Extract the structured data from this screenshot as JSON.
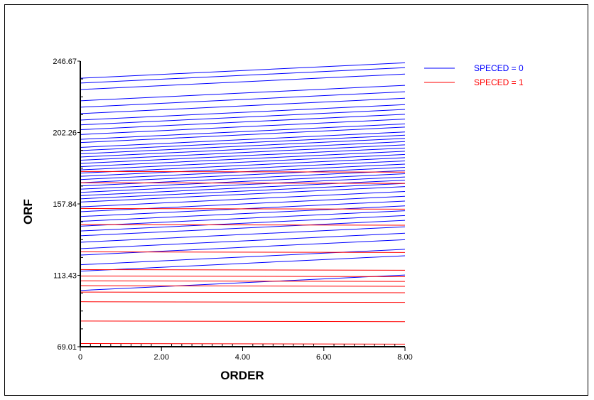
{
  "chart_data": {
    "type": "line",
    "title": "",
    "xlabel": "ORDER",
    "ylabel": "ORF",
    "xlim": [
      0,
      8
    ],
    "ylim": [
      69.01,
      246.67
    ],
    "x_ticks": [
      "0",
      "2.00",
      "4.00",
      "6.00",
      "8.00"
    ],
    "y_ticks": [
      "69.01",
      "113.43",
      "157.84",
      "202.26",
      "246.67"
    ],
    "grid": false,
    "legend_position": "top-right",
    "legend": [
      {
        "label": "SPECED = 0",
        "color": "#0000ff"
      },
      {
        "label": "SPECED = 1",
        "color": "#ff0000"
      }
    ],
    "series": [
      {
        "name": "SPECED = 0",
        "color": "#0000ff",
        "lines": [
          [
            0,
            236
          ],
          [
            0,
            233
          ],
          [
            0,
            229
          ],
          [
            0,
            222
          ],
          [
            0,
            218
          ],
          [
            0,
            214
          ],
          [
            0,
            210
          ],
          [
            0,
            207
          ],
          [
            0,
            204
          ],
          [
            0,
            201
          ],
          [
            0,
            198
          ],
          [
            0,
            196
          ],
          [
            0,
            193
          ],
          [
            0,
            191
          ],
          [
            0,
            189
          ],
          [
            0,
            187
          ],
          [
            0,
            185
          ],
          [
            0,
            183
          ],
          [
            0,
            181
          ],
          [
            0,
            179
          ],
          [
            0,
            177
          ],
          [
            0,
            175
          ],
          [
            0,
            173
          ],
          [
            0,
            171
          ],
          [
            0,
            169
          ],
          [
            0,
            167
          ],
          [
            0,
            165
          ],
          [
            0,
            163
          ],
          [
            0,
            161
          ],
          [
            0,
            159
          ],
          [
            0,
            156
          ],
          [
            0,
            153
          ],
          [
            0,
            150
          ],
          [
            0,
            147
          ],
          [
            0,
            144
          ],
          [
            0,
            141
          ],
          [
            0,
            138
          ],
          [
            0,
            134
          ],
          [
            0,
            130
          ],
          [
            0,
            126
          ],
          [
            0,
            120
          ],
          [
            0,
            116
          ],
          [
            0,
            104
          ]
        ],
        "slope": 1.2
      },
      {
        "name": "SPECED = 1",
        "color": "#ff0000",
        "lines": [
          [
            0,
            178
          ],
          [
            0,
            171
          ],
          [
            0,
            155
          ],
          [
            0,
            145
          ],
          [
            0,
            128
          ],
          [
            0,
            117
          ],
          [
            0,
            113
          ],
          [
            0,
            110
          ],
          [
            0,
            107
          ],
          [
            0,
            103
          ],
          [
            0,
            97
          ],
          [
            0,
            85
          ],
          [
            0,
            71
          ]
        ],
        "slope": -0.05
      }
    ]
  }
}
